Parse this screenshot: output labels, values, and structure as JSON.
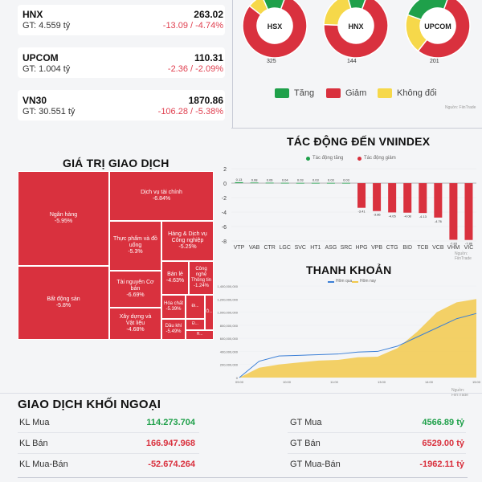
{
  "indices": [
    {
      "name": "HNX",
      "value": "263.02",
      "gt": "GT: 4.559 tỷ",
      "change": "-13.09 / -4.74%"
    },
    {
      "name": "UPCOM",
      "value": "110.31",
      "gt": "GT: 1.004 tỷ",
      "change": "-2.36 / -2.09%"
    },
    {
      "name": "VN30",
      "value": "1870.86",
      "gt": "GT: 30.551 tỷ",
      "change": "-106.28 / -5.38%"
    }
  ],
  "donuts": [
    {
      "label": "HSX",
      "count": "325",
      "up": 0.12,
      "down": 0.8,
      "flat": 0.08
    },
    {
      "label": "HNX",
      "count": "144",
      "up": 0.1,
      "down": 0.7,
      "flat": 0.2
    },
    {
      "label": "UPCOM",
      "count": "201",
      "up": 0.25,
      "down": 0.55,
      "flat": 0.2
    }
  ],
  "breadth_legend": {
    "up": "Tăng",
    "down": "Giảm",
    "flat": "Không đổi",
    "source": "Nguồn: FiinTrade"
  },
  "colors": {
    "up": "#1fa04a",
    "down": "#d9313e",
    "flat": "#f6d84a",
    "accent_blue": "#3b7fd6",
    "area": "#f2c94c"
  },
  "treemap": {
    "title": "GIÁ TRỊ GIAO DỊCH",
    "cells": [
      {
        "name": "Ngân hàng",
        "pct": "-5.95%"
      },
      {
        "name": "Bất động sản",
        "pct": "-5.8%"
      },
      {
        "name": "Dịch vụ tài chính",
        "pct": "-6.84%"
      },
      {
        "name": "Thực phẩm và đồ uống",
        "pct": "-5.3%"
      },
      {
        "name": "Hàng & Dịch vụ Công nghiệp",
        "pct": "-5.25%"
      },
      {
        "name": "Tài nguyên Cơ bản",
        "pct": "-6.69%"
      },
      {
        "name": "Bán lẻ",
        "pct": "-4.63%"
      },
      {
        "name": "Công nghệ Thông tin",
        "pct": "-1.24%"
      },
      {
        "name": "Xây dựng và Vật liệu",
        "pct": "-4.68%"
      },
      {
        "name": "Hóa chất",
        "pct": "-5.39%"
      },
      {
        "name": "Dầu khí",
        "pct": "-5.49%"
      },
      {
        "name": "Đi...",
        "pct": ""
      },
      {
        "name": "Đ...",
        "pct": ""
      },
      {
        "name": "Ô...",
        "pct": ""
      },
      {
        "name": "H...",
        "pct": ""
      }
    ]
  },
  "impact": {
    "title": "TÁC ĐỘNG ĐẾN VNINDEX",
    "legend_up": "Tác động tăng",
    "legend_down": "Tác động giảm",
    "source": "Nguồn: FiinTrade"
  },
  "liquidity": {
    "title": "THANH KHOẢN",
    "legend_prev": "Hôm qua",
    "legend_today": "Hôm nay",
    "source": "Nguồn: FiinTrade",
    "y_ticks": [
      "1,400,000,000",
      "1,200,000,000",
      "1,000,000,000",
      "800,000,000",
      "600,000,000",
      "400,000,000",
      "200,000,000",
      "0"
    ],
    "x_ticks": [
      "09:00",
      "10:00",
      "11:00",
      "13:00",
      "14:00",
      "15:00"
    ]
  },
  "chart_data": [
    {
      "type": "bar",
      "title": "TÁC ĐỘNG ĐẾN VNINDEX",
      "categories": [
        "VTP",
        "VAB",
        "CTR",
        "LGC",
        "SVC",
        "HT1",
        "ASG",
        "SRC",
        "HPG",
        "VPB",
        "CTG",
        "BID",
        "TCB",
        "VCB",
        "VHM",
        "VIC"
      ],
      "values": [
        0.13,
        0.08,
        0.06,
        0.04,
        0.03,
        0.03,
        0.03,
        0.03,
        -3.41,
        -3.86,
        -4.05,
        -4.08,
        -4.13,
        -4.76,
        -7.83,
        -7.86
      ],
      "value_labels": [
        "0.13",
        "0.08",
        "0.06",
        "0.04",
        "0.03",
        "0.03",
        "0.03",
        "0.03",
        "-3.41",
        "-3.86",
        "-4.05",
        "-4.08",
        "-4.13",
        "-4.76",
        "-7.83",
        "-7.86"
      ],
      "ylim": [
        -8,
        2
      ],
      "y_ticks": [
        "2",
        "0",
        "-2",
        "-4",
        "-6",
        "-8"
      ]
    },
    {
      "type": "area",
      "title": "THANH KHOẢN",
      "x": [
        "09:00",
        "09:30",
        "10:00",
        "10:30",
        "11:00",
        "11:30",
        "13:00",
        "13:30",
        "14:00",
        "14:20",
        "14:30",
        "14:45",
        "15:00"
      ],
      "series": [
        {
          "name": "Hôm qua",
          "values": [
            0,
            250000000,
            330000000,
            340000000,
            350000000,
            360000000,
            390000000,
            400000000,
            480000000,
            620000000,
            760000000,
            900000000,
            980000000
          ]
        },
        {
          "name": "Hôm nay",
          "values": [
            0,
            150000000,
            200000000,
            230000000,
            260000000,
            270000000,
            310000000,
            320000000,
            450000000,
            700000000,
            1000000000,
            1150000000,
            1200000000
          ]
        }
      ],
      "ylim": [
        0,
        1400000000
      ]
    }
  ],
  "foreign": {
    "title": "GIAO DỊCH KHỐI NGOẠI",
    "left": [
      {
        "label": "KL Mua",
        "value": "114.273.704",
        "color": "#1fa04a"
      },
      {
        "label": "KL Bán",
        "value": "166.947.968",
        "color": "#d9313e"
      },
      {
        "label": "KL Mua-Bán",
        "value": "-52.674.264",
        "color": "#d9313e"
      }
    ],
    "right": [
      {
        "label": "GT Mua",
        "value": "4566.89 tỷ",
        "color": "#1fa04a"
      },
      {
        "label": "GT Bán",
        "value": "6529.00 tỷ",
        "color": "#d9313e"
      },
      {
        "label": "GT Mua-Bán",
        "value": "-1962.11 tỷ",
        "color": "#d9313e"
      }
    ]
  }
}
